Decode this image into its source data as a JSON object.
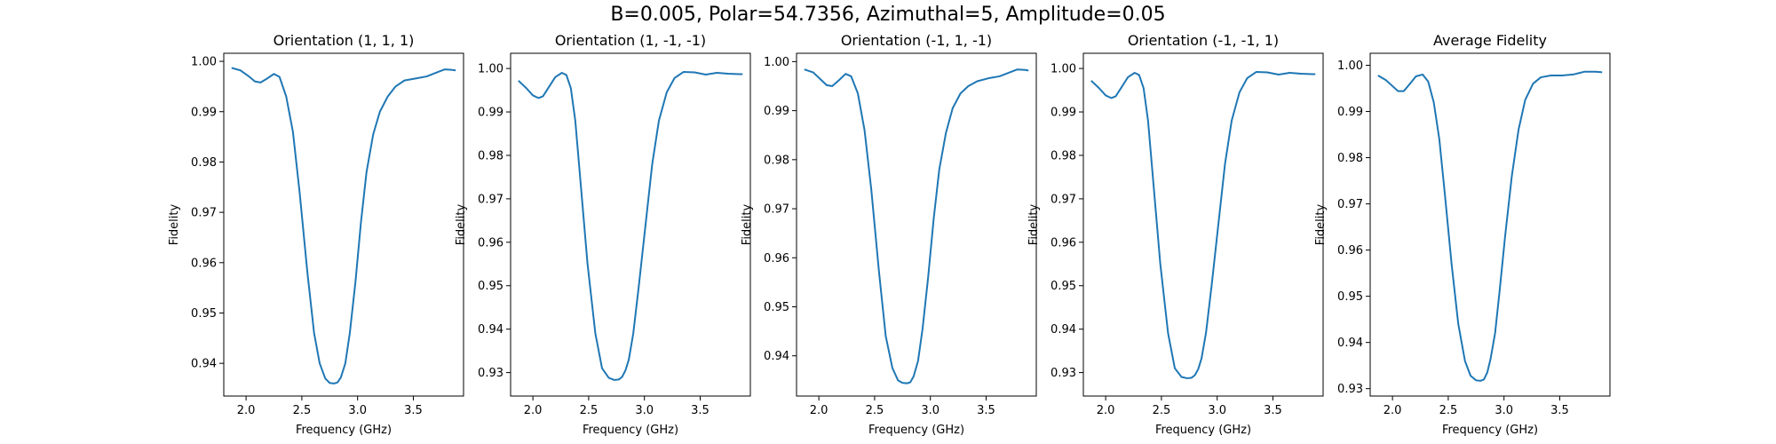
{
  "suptitle": "B=0.005, Polar=54.7356, Azimuthal=5, Amplitude=0.05",
  "line_color": "#1f77b4",
  "chart_data": [
    {
      "type": "line",
      "title": "Orientation (1, 1, 1)",
      "xlabel": "Frequency (GHz)",
      "ylabel": "Fidelity",
      "xlim": [
        1.8,
        3.95
      ],
      "ylim": [
        0.9335,
        1.0016
      ],
      "xticks": [
        2.0,
        2.5,
        3.0,
        3.5
      ],
      "xtick_labels": [
        "2.0",
        "2.5",
        "3.0",
        "3.5"
      ],
      "yticks": [
        0.94,
        0.95,
        0.96,
        0.97,
        0.98,
        0.99,
        1.0
      ],
      "ytick_labels": [
        "0.94",
        "0.95",
        "0.96",
        "0.97",
        "0.98",
        "0.99",
        "1.00"
      ],
      "grid": false,
      "series": [
        {
          "x": [
            1.87,
            1.95,
            2.02,
            2.08,
            2.13,
            2.19,
            2.25,
            2.3,
            2.36,
            2.42,
            2.48,
            2.55,
            2.61,
            2.66,
            2.71,
            2.75,
            2.79,
            2.82,
            2.85,
            2.89,
            2.93,
            2.98,
            3.03,
            3.08,
            3.14,
            3.2,
            3.27,
            3.34,
            3.42,
            3.52,
            3.62,
            3.7,
            3.78,
            3.85,
            3.88
          ],
          "y": [
            0.9987,
            0.9982,
            0.9971,
            0.996,
            0.9958,
            0.9966,
            0.9975,
            0.9969,
            0.993,
            0.986,
            0.974,
            0.958,
            0.946,
            0.94,
            0.937,
            0.9361,
            0.936,
            0.9362,
            0.9372,
            0.94,
            0.946,
            0.956,
            0.968,
            0.978,
            0.9855,
            0.99,
            0.993,
            0.995,
            0.9962,
            0.9966,
            0.997,
            0.9977,
            0.9984,
            0.9983,
            0.9982
          ]
        }
      ]
    },
    {
      "type": "line",
      "title": "Orientation (1, -1, -1)",
      "xlabel": "Frequency (GHz)",
      "ylabel": "Fidelity",
      "xlim": [
        1.8,
        3.95
      ],
      "ylim": [
        0.9246,
        1.0035
      ],
      "xticks": [
        2.0,
        2.5,
        3.0,
        3.5
      ],
      "xtick_labels": [
        "2.0",
        "2.5",
        "3.0",
        "3.5"
      ],
      "yticks": [
        0.93,
        0.94,
        0.95,
        0.96,
        0.97,
        0.98,
        0.99,
        1.0
      ],
      "ytick_labels": [
        "0.93",
        "0.94",
        "0.95",
        "0.96",
        "0.97",
        "0.98",
        "0.99",
        "1.00"
      ],
      "grid": false,
      "series": [
        {
          "x": [
            1.87,
            1.94,
            2.0,
            2.05,
            2.09,
            2.14,
            2.2,
            2.26,
            2.3,
            2.34,
            2.38,
            2.43,
            2.49,
            2.56,
            2.62,
            2.68,
            2.73,
            2.77,
            2.8,
            2.83,
            2.86,
            2.9,
            2.95,
            3.01,
            3.07,
            3.13,
            3.2,
            3.27,
            3.35,
            3.45,
            3.55,
            3.65,
            3.75,
            3.85,
            3.88
          ],
          "y": [
            0.9972,
            0.9955,
            0.9938,
            0.9932,
            0.9936,
            0.9956,
            0.998,
            0.999,
            0.9985,
            0.9955,
            0.988,
            0.973,
            0.955,
            0.939,
            0.931,
            0.9288,
            0.9283,
            0.9284,
            0.929,
            0.9305,
            0.933,
            0.939,
            0.95,
            0.964,
            0.978,
            0.988,
            0.9945,
            0.9978,
            0.9992,
            0.9991,
            0.9986,
            0.999,
            0.9988,
            0.9987,
            0.9987
          ]
        }
      ]
    },
    {
      "type": "line",
      "title": "Orientation (-1, 1, -1)",
      "xlabel": "Frequency (GHz)",
      "ylabel": "Fidelity",
      "xlim": [
        1.8,
        3.95
      ],
      "ylim": [
        0.9318,
        1.0017
      ],
      "xticks": [
        2.0,
        2.5,
        3.0,
        3.5
      ],
      "xtick_labels": [
        "2.0",
        "2.5",
        "3.0",
        "3.5"
      ],
      "yticks": [
        0.94,
        0.95,
        0.96,
        0.97,
        0.98,
        0.99,
        1.0
      ],
      "ytick_labels": [
        "0.94",
        "0.95",
        "0.96",
        "0.97",
        "0.98",
        "0.99",
        "1.00"
      ],
      "grid": false,
      "series": [
        {
          "x": [
            1.87,
            1.95,
            2.01,
            2.07,
            2.12,
            2.18,
            2.24,
            2.29,
            2.35,
            2.41,
            2.47,
            2.54,
            2.6,
            2.66,
            2.71,
            2.75,
            2.79,
            2.82,
            2.85,
            2.89,
            2.93,
            2.98,
            3.03,
            3.08,
            3.14,
            3.2,
            3.27,
            3.34,
            3.42,
            3.52,
            3.62,
            3.7,
            3.78,
            3.85,
            3.88
          ],
          "y": [
            0.9984,
            0.9978,
            0.9965,
            0.9952,
            0.995,
            0.9962,
            0.9975,
            0.997,
            0.9935,
            0.986,
            0.974,
            0.957,
            0.944,
            0.9375,
            0.935,
            0.9345,
            0.9344,
            0.9346,
            0.9358,
            0.939,
            0.9455,
            0.956,
            0.968,
            0.978,
            0.9855,
            0.9905,
            0.9935,
            0.995,
            0.996,
            0.9966,
            0.997,
            0.9977,
            0.9984,
            0.9983,
            0.9982
          ]
        }
      ]
    },
    {
      "type": "line",
      "title": "Orientation (-1, -1, 1)",
      "xlabel": "Frequency (GHz)",
      "ylabel": "Fidelity",
      "xlim": [
        1.8,
        3.95
      ],
      "ylim": [
        0.9246,
        1.0035
      ],
      "xticks": [
        2.0,
        2.5,
        3.0,
        3.5
      ],
      "xtick_labels": [
        "2.0",
        "2.5",
        "3.0",
        "3.5"
      ],
      "yticks": [
        0.93,
        0.94,
        0.95,
        0.96,
        0.97,
        0.98,
        0.99,
        1.0
      ],
      "ytick_labels": [
        "0.93",
        "0.94",
        "0.95",
        "0.96",
        "0.97",
        "0.98",
        "0.99",
        "1.00"
      ],
      "grid": false,
      "series": [
        {
          "x": [
            1.87,
            1.94,
            2.0,
            2.05,
            2.09,
            2.14,
            2.2,
            2.26,
            2.3,
            2.34,
            2.38,
            2.43,
            2.49,
            2.56,
            2.62,
            2.68,
            2.73,
            2.77,
            2.8,
            2.83,
            2.86,
            2.9,
            2.95,
            3.01,
            3.07,
            3.13,
            3.2,
            3.27,
            3.35,
            3.45,
            3.55,
            3.65,
            3.75,
            3.85,
            3.88
          ],
          "y": [
            0.9972,
            0.9955,
            0.9938,
            0.9932,
            0.9936,
            0.9956,
            0.998,
            0.999,
            0.9985,
            0.9955,
            0.988,
            0.973,
            0.955,
            0.939,
            0.931,
            0.929,
            0.9287,
            0.9288,
            0.9294,
            0.9308,
            0.9333,
            0.9392,
            0.95,
            0.964,
            0.978,
            0.988,
            0.9945,
            0.9978,
            0.9992,
            0.9991,
            0.9986,
            0.999,
            0.9988,
            0.9987,
            0.9987
          ]
        }
      ]
    },
    {
      "type": "line",
      "title": "Average Fidelity",
      "xlabel": "Frequency (GHz)",
      "ylabel": "Fidelity",
      "xlim": [
        1.8,
        3.95
      ],
      "ylim": [
        0.9284,
        1.0026
      ],
      "xticks": [
        2.0,
        2.5,
        3.0,
        3.5
      ],
      "xtick_labels": [
        "2.0",
        "2.5",
        "3.0",
        "3.5"
      ],
      "yticks": [
        0.93,
        0.94,
        0.95,
        0.96,
        0.97,
        0.98,
        0.99,
        1.0
      ],
      "ytick_labels": [
        "0.93",
        "0.94",
        "0.95",
        "0.96",
        "0.97",
        "0.98",
        "0.99",
        "1.00"
      ],
      "grid": false,
      "series": [
        {
          "x": [
            1.87,
            1.94,
            2.0,
            2.05,
            2.1,
            2.15,
            2.21,
            2.27,
            2.32,
            2.37,
            2.42,
            2.47,
            2.53,
            2.59,
            2.65,
            2.7,
            2.75,
            2.79,
            2.82,
            2.85,
            2.88,
            2.92,
            2.96,
            3.01,
            3.07,
            3.13,
            3.19,
            3.26,
            3.33,
            3.42,
            3.52,
            3.62,
            3.72,
            3.82,
            3.88
          ],
          "y": [
            0.9978,
            0.9968,
            0.9955,
            0.9944,
            0.9944,
            0.9958,
            0.9976,
            0.998,
            0.9965,
            0.992,
            0.984,
            0.972,
            0.957,
            0.944,
            0.936,
            0.9328,
            0.9318,
            0.9317,
            0.932,
            0.9335,
            0.9365,
            0.942,
            0.951,
            0.963,
            0.976,
            0.986,
            0.9925,
            0.996,
            0.9974,
            0.9978,
            0.9978,
            0.998,
            0.9986,
            0.9986,
            0.9985
          ]
        }
      ]
    }
  ]
}
